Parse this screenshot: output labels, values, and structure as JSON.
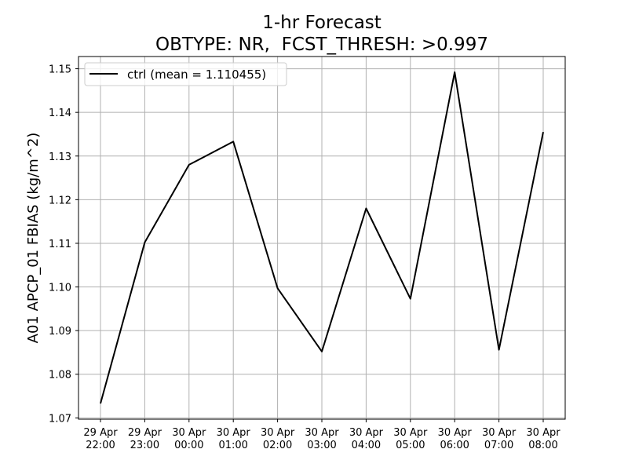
{
  "chart_data": {
    "type": "line",
    "title": "1-hr Forecast",
    "subtitle": "OBTYPE: NR,  FCST_THRESH: >0.997",
    "xlabel": "",
    "ylabel": "A01 APCP_01 FBIAS (kg/m^2)",
    "categories": [
      [
        "29 Apr",
        "22:00"
      ],
      [
        "29 Apr",
        "23:00"
      ],
      [
        "30 Apr",
        "00:00"
      ],
      [
        "30 Apr",
        "01:00"
      ],
      [
        "30 Apr",
        "02:00"
      ],
      [
        "30 Apr",
        "03:00"
      ],
      [
        "30 Apr",
        "04:00"
      ],
      [
        "30 Apr",
        "05:00"
      ],
      [
        "30 Apr",
        "06:00"
      ],
      [
        "30 Apr",
        "07:00"
      ],
      [
        "30 Apr",
        "08:00"
      ]
    ],
    "series": [
      {
        "name": "ctrl (mean = 1.110455)",
        "color": "#000000",
        "values": [
          1.0733,
          1.1102,
          1.128,
          1.1333,
          1.0997,
          1.0852,
          1.118,
          1.0973,
          1.1492,
          1.0856,
          1.1355
        ]
      }
    ],
    "yticks": [
      "1.07",
      "1.08",
      "1.09",
      "1.10",
      "1.11",
      "1.12",
      "1.13",
      "1.14",
      "1.15"
    ],
    "ylim": [
      1.0697,
      1.1528
    ],
    "grid": true,
    "legend_position": "top-left"
  }
}
